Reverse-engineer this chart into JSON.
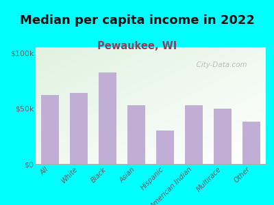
{
  "title": "Median per capita income in 2022",
  "subtitle": "Pewaukee, WI",
  "categories": [
    "All",
    "White",
    "Black",
    "Asian",
    "Hispanic",
    "American Indian",
    "Multirace",
    "Other"
  ],
  "values": [
    62000,
    64000,
    82000,
    53000,
    30000,
    53000,
    50000,
    38000
  ],
  "bar_color": "#c0aed4",
  "background_color": "#00FFFF",
  "title_fontsize": 13,
  "subtitle_fontsize": 10.5,
  "subtitle_color": "#8B4060",
  "tick_color": "#6b5a5a",
  "ylim": [
    0,
    105000
  ],
  "yticks": [
    0,
    50000,
    100000
  ],
  "ytick_labels": [
    "$0",
    "$50k",
    "$100k"
  ],
  "watermark": "  City-Data.com"
}
